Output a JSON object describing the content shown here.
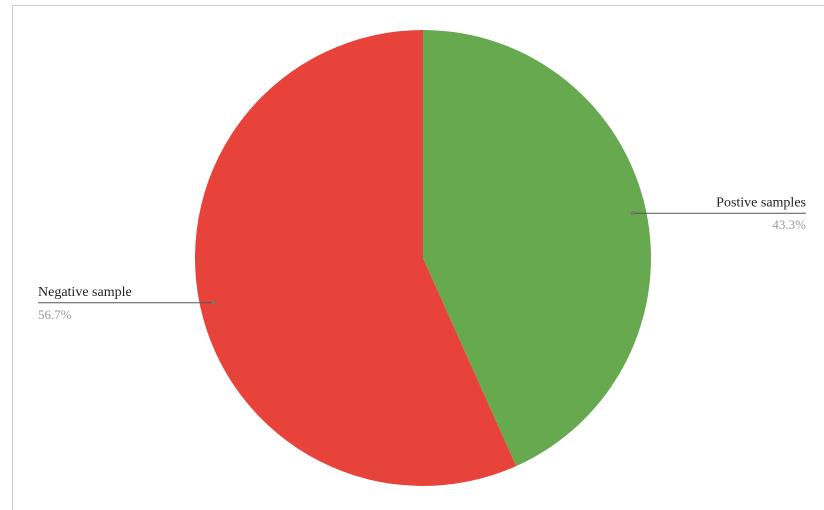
{
  "chart_data": {
    "type": "pie",
    "categories": [
      "Postive samples",
      "Negative sample"
    ],
    "values": [
      43.3,
      56.7
    ],
    "value_labels": [
      "43.3%",
      "56.7%"
    ],
    "colors": [
      "#67a94f",
      "#e8433a"
    ]
  }
}
